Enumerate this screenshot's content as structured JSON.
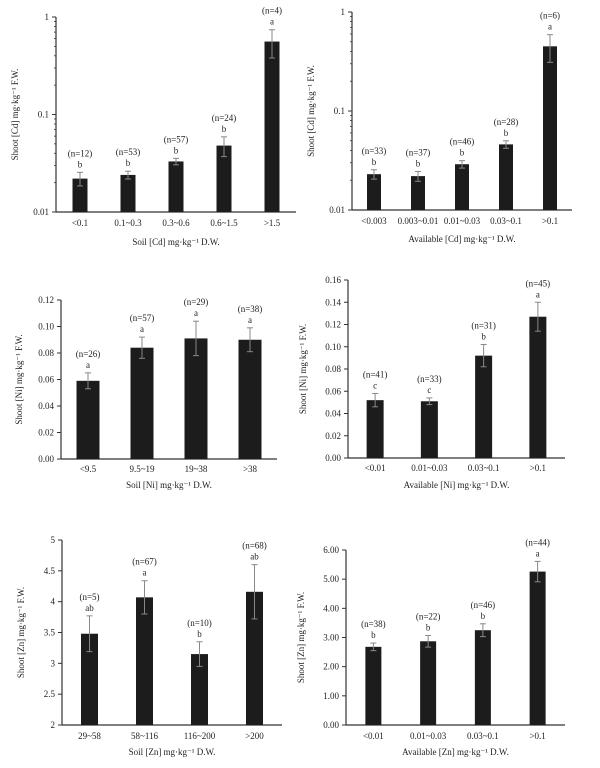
{
  "chart_data": [
    {
      "type": "bar",
      "scale": "log",
      "title": "",
      "xlabel": "Soil [Cd] mg·kg⁻¹ D.W.",
      "ylabel": "Shoot [Cd] mg·kg⁻¹ F.W.",
      "ylim": [
        0.01,
        1
      ],
      "yticks": [
        0.01,
        0.1,
        1
      ],
      "ytick_labels": [
        "0.01",
        "0.1",
        "1"
      ],
      "categories": [
        "<0.1",
        "0.1~0.3",
        "0.3~0.6",
        "0.6~1.5",
        ">1.5"
      ],
      "values": [
        0.022,
        0.024,
        0.033,
        0.048,
        0.56
      ],
      "errors": [
        0.0035,
        0.0022,
        0.0025,
        0.011,
        0.18
      ],
      "n_labels": [
        "(n=12)",
        "(n=53)",
        "(n=57)",
        "(n=24)",
        "(n=4)"
      ],
      "letters": [
        "b",
        "b",
        "b",
        "b",
        "a"
      ]
    },
    {
      "type": "bar",
      "scale": "log",
      "title": "",
      "xlabel": "Available [Cd] mg·kg⁻¹ D.W.",
      "ylabel": "Shoot [Cd] mg·kg⁻¹ F.W.",
      "ylim": [
        0.01,
        1
      ],
      "yticks": [
        0.01,
        0.1,
        1
      ],
      "ytick_labels": [
        "0.01",
        "0.1",
        "1"
      ],
      "categories": [
        "<0.003",
        "0.003~0.01",
        "0.01~0.03",
        "0.03~0.1",
        ">0.1"
      ],
      "values": [
        0.023,
        0.022,
        0.029,
        0.046,
        0.45
      ],
      "errors": [
        0.0025,
        0.0025,
        0.0025,
        0.004,
        0.14
      ],
      "n_labels": [
        "(n=33)",
        "(n=37)",
        "(n=46)",
        "(n=28)",
        "(n=6)"
      ],
      "letters": [
        "b",
        "b",
        "b",
        "b",
        "a"
      ]
    },
    {
      "type": "bar",
      "scale": "linear",
      "title": "",
      "xlabel": "Soil [Ni] mg·kg⁻¹ D.W.",
      "ylabel": "Shoot [Ni] mg·kg⁻¹ F.W.",
      "ylim": [
        0,
        0.12
      ],
      "yticks": [
        0,
        0.02,
        0.04,
        0.06,
        0.08,
        0.1,
        0.12
      ],
      "ytick_labels": [
        "0.00",
        "0.02",
        "0.04",
        "0.06",
        "0.08",
        "0.10",
        "0.12"
      ],
      "categories": [
        "<9.5",
        "9.5~19",
        "19~38",
        ">38"
      ],
      "values": [
        0.059,
        0.084,
        0.091,
        0.09
      ],
      "errors": [
        0.006,
        0.008,
        0.013,
        0.009
      ],
      "n_labels": [
        "(n=26)",
        "(n=57)",
        "(n=29)",
        "(n=38)"
      ],
      "letters": [
        "a",
        "a",
        "a",
        "a"
      ]
    },
    {
      "type": "bar",
      "scale": "linear",
      "title": "",
      "xlabel": "Available [Ni] mg·kg⁻¹ D.W.",
      "ylabel": "Shoot [Ni] mg·kg⁻¹ F.W.",
      "ylim": [
        0,
        0.16
      ],
      "yticks": [
        0,
        0.02,
        0.04,
        0.06,
        0.08,
        0.1,
        0.12,
        0.14,
        0.16
      ],
      "ytick_labels": [
        "0.00",
        "0.02",
        "0.04",
        "0.06",
        "0.08",
        "0.10",
        "0.12",
        "0.14",
        "0.16"
      ],
      "categories": [
        "<0.01",
        "0.01~0.03",
        "0.03~0.1",
        ">0.1"
      ],
      "values": [
        0.052,
        0.051,
        0.092,
        0.127
      ],
      "errors": [
        0.006,
        0.003,
        0.01,
        0.013
      ],
      "n_labels": [
        "(n=41)",
        "(n=33)",
        "(n=31)",
        "(n=45)"
      ],
      "letters": [
        "c",
        "c",
        "b",
        "a"
      ]
    },
    {
      "type": "bar",
      "scale": "linear",
      "title": "",
      "xlabel": "Soil [Zn] mg·kg⁻¹ D.W.",
      "ylabel": "Shoot [Zn] mg·kg⁻¹ F.W.",
      "ylim": [
        2,
        5
      ],
      "yticks": [
        2,
        2.5,
        3,
        3.5,
        4,
        4.5,
        5
      ],
      "ytick_labels": [
        "2",
        "2.5",
        "3",
        "3.5",
        "4",
        "4.5",
        "5"
      ],
      "categories": [
        "29~58",
        "58~116",
        "116~200",
        ">200"
      ],
      "values": [
        3.48,
        4.07,
        3.15,
        4.16
      ],
      "errors": [
        0.29,
        0.27,
        0.2,
        0.44
      ],
      "n_labels": [
        "(n=5)",
        "(n=67)",
        "(n=10)",
        "(n=68)"
      ],
      "letters": [
        "ab",
        "a",
        "b",
        "ab"
      ]
    },
    {
      "type": "bar",
      "scale": "linear",
      "title": "",
      "xlabel": "Available [Zn] mg·kg⁻¹ D.W.",
      "ylabel": "Shoot [Zn] mg·kg⁻¹ F.W.",
      "ylim": [
        0,
        6
      ],
      "yticks": [
        0,
        1,
        2,
        3,
        4,
        5,
        6
      ],
      "ytick_labels": [
        "0.00",
        "1.00",
        "2.00",
        "3.00",
        "4.00",
        "5.00",
        "6.00"
      ],
      "categories": [
        "<0.01",
        "0.01~0.03",
        "0.03~0.1",
        ">0.1"
      ],
      "values": [
        2.68,
        2.87,
        3.25,
        5.26
      ],
      "errors": [
        0.13,
        0.2,
        0.22,
        0.35
      ],
      "n_labels": [
        "(n=38)",
        "(n=22)",
        "(n=46)",
        "(n=44)"
      ],
      "letters": [
        "b",
        "b",
        "b",
        "a"
      ]
    }
  ]
}
